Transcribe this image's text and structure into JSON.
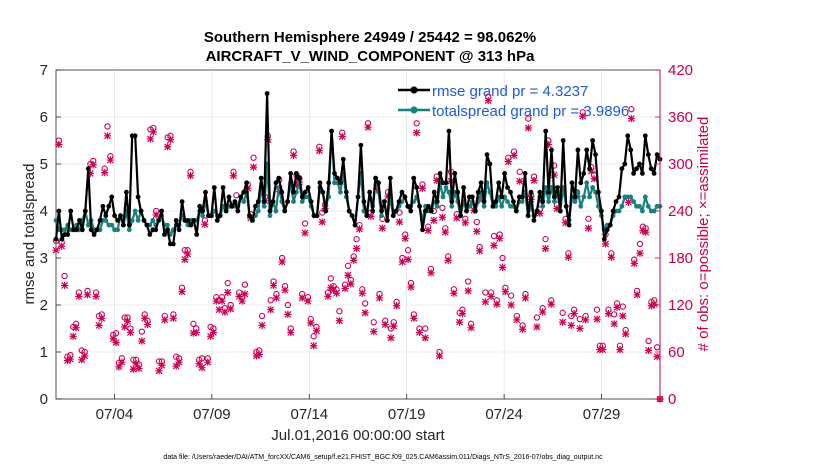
{
  "chart_data": {
    "type": "line",
    "title_line1": "Southern Hemisphere 24949 / 25442 = 98.062%",
    "title_line2": "AIRCRAFT_V_WIND_COMPONENT @ 313 hPa",
    "xlabel": "Jul.01,2016 00:00:00 start",
    "ylabel": "rmse and totalspread",
    "ylabel_right": "# of obs: o=possible; ×=assimilated",
    "footnote": "data file: /Users/raeder/DAI/ATM_forcXX/CAM6_setup/f.e21.FHIST_BGC.f09_025.CAM6assim.011/Diags_NTrS_2016-07/obs_diag_output.nc",
    "xlim": [
      1.0,
      32.0
    ],
    "ylim": [
      0,
      7
    ],
    "ylim_right": [
      0,
      420
    ],
    "x_ticks": [
      4,
      9,
      14,
      19,
      24,
      29
    ],
    "x_tick_labels": [
      "07/04",
      "07/09",
      "07/14",
      "07/19",
      "07/24",
      "07/29"
    ],
    "y_ticks": [
      0,
      1,
      2,
      3,
      4,
      5,
      6,
      7
    ],
    "y_tick_labels": [
      "0",
      "1",
      "2",
      "3",
      "4",
      "5",
      "6",
      "7"
    ],
    "y_right_ticks": [
      0,
      60,
      120,
      180,
      240,
      300,
      360,
      420
    ],
    "y_right_tick_labels": [
      "0",
      "60",
      "120",
      "180",
      "240",
      "300",
      "360",
      "420"
    ],
    "legend_location": "top-right",
    "colors": {
      "rmse": "#000000",
      "spread": "#1a7f7f",
      "obs": "#cc0055",
      "legend_text": "#1f5ad8"
    },
    "series": [
      {
        "name": "rmse grand pr = 4.3237",
        "axis": "left",
        "values": [
          3.4,
          4.0,
          3.4,
          3.5,
          3.5,
          4.0,
          3.6,
          3.6,
          3.8,
          3.6,
          4.0,
          4.9,
          3.6,
          3.5,
          3.6,
          3.8,
          4.1,
          3.9,
          4.1,
          4.3,
          3.9,
          3.8,
          3.9,
          3.7,
          4.4,
          3.7,
          5.6,
          5.6,
          4.3,
          4.0,
          3.8,
          3.7,
          3.5,
          3.6,
          3.6,
          3.8,
          4.0,
          3.5,
          3.6,
          3.3,
          3.3,
          3.8,
          3.6,
          4.2,
          3.8,
          3.8,
          3.7,
          3.8,
          3.5,
          4.1,
          4.0,
          4.4,
          3.9,
          3.9,
          4.5,
          3.8,
          3.9,
          4.5,
          4.0,
          4.3,
          4.1,
          4.2,
          4.0,
          4.3,
          4.4,
          4.6,
          3.9,
          3.8,
          4.1,
          4.2,
          4.7,
          4.2,
          6.5,
          4.0,
          4.2,
          4.6,
          4.7,
          4.4,
          4.0,
          4.2,
          4.8,
          4.4,
          4.8,
          4.7,
          4.3,
          4.4,
          4.5,
          4.2,
          3.9,
          3.9,
          4.6,
          4.4,
          4.0,
          4.6,
          5.7,
          4.8,
          4.7,
          4.6,
          5.1,
          4.4,
          4.0,
          3.9,
          3.7,
          4.3,
          5.4,
          4.2,
          3.9,
          4.4,
          4.0,
          4.7,
          4.6,
          4.0,
          4.2,
          3.8,
          4.7,
          3.9,
          4.0,
          4.2,
          4.4,
          4.3,
          4.1,
          4.0,
          4.7,
          4.5,
          4.1,
          3.6,
          4.0,
          4.1,
          4.0,
          4.4,
          4.2,
          4.8,
          4.6,
          4.6,
          5.7,
          4.2,
          4.8,
          4.4,
          3.9,
          4.5,
          4.0,
          4.3,
          4.3,
          4.0,
          4.4,
          4.6,
          4.2,
          5.2,
          5.0,
          4.1,
          4.2,
          4.6,
          4.3,
          4.8,
          4.5,
          4.4,
          4.2,
          4.0,
          4.3,
          4.3,
          4.8,
          3.9,
          4.4,
          3.8,
          4.0,
          4.4,
          4.2,
          5.7,
          4.4,
          5.3,
          4.3,
          4.5,
          4.0,
          5.5,
          4.1,
          3.7,
          4.6,
          4.3,
          5.3,
          4.6,
          4.8,
          5.3,
          4.9,
          5.5,
          5.2,
          4.4,
          4.0,
          3.4,
          3.6,
          3.7,
          4.0,
          4.2,
          4.3,
          4.9,
          5.0,
          5.6,
          5.3,
          4.8,
          4.9,
          5.0,
          4.8,
          5.6,
          5.2,
          4.9,
          4.8,
          5.2,
          5.1
        ]
      },
      {
        "name": "totalspread grand pr = 3.9896",
        "axis": "left",
        "values": [
          3.8,
          3.6,
          3.6,
          3.6,
          3.7,
          3.6,
          3.6,
          3.7,
          3.6,
          3.8,
          4.0,
          3.7,
          3.8,
          3.6,
          3.6,
          3.6,
          3.8,
          3.8,
          3.7,
          3.7,
          3.6,
          3.6,
          3.9,
          3.7,
          4.0,
          3.6,
          3.8,
          4.0,
          3.8,
          4.0,
          3.8,
          3.7,
          3.7,
          3.8,
          3.7,
          3.8,
          3.9,
          3.7,
          3.7,
          3.5,
          3.6,
          3.7,
          3.7,
          3.9,
          3.8,
          3.7,
          3.8,
          3.8,
          3.8,
          4.0,
          3.9,
          4.2,
          3.9,
          3.9,
          4.0,
          3.9,
          3.9,
          4.1,
          4.0,
          4.1,
          4.1,
          4.1,
          4.1,
          4.3,
          4.2,
          4.4,
          3.9,
          3.8,
          3.9,
          4.0,
          4.5,
          4.1,
          5.0,
          3.9,
          4.2,
          4.0,
          4.5,
          4.2,
          4.0,
          4.2,
          4.6,
          4.2,
          4.4,
          4.6,
          4.2,
          4.3,
          4.3,
          4.1,
          3.9,
          3.9,
          4.5,
          4.4,
          4.1,
          4.3,
          5.7,
          4.6,
          4.6,
          4.4,
          4.8,
          4.3,
          4.0,
          3.9,
          3.7,
          4.3,
          4.8,
          4.0,
          3.9,
          4.4,
          4.1,
          4.7,
          4.4,
          3.9,
          4.2,
          3.8,
          4.3,
          3.9,
          4.0,
          4.1,
          4.2,
          4.3,
          4.1,
          4.1,
          4.2,
          4.3,
          4.1,
          3.8,
          4.1,
          4.0,
          4.0,
          4.2,
          4.1,
          4.6,
          4.3,
          4.5,
          4.4,
          4.1,
          4.4,
          4.2,
          3.9,
          4.2,
          4.0,
          4.1,
          4.2,
          4.0,
          4.2,
          4.4,
          4.1,
          4.6,
          4.4,
          4.1,
          4.1,
          4.3,
          4.1,
          4.3,
          4.2,
          4.1,
          4.1,
          4.0,
          4.2,
          4.2,
          4.4,
          3.9,
          4.1,
          3.9,
          4.0,
          4.3,
          4.1,
          4.5,
          4.2,
          4.5,
          4.2,
          4.4,
          4.0,
          4.5,
          4.1,
          3.8,
          4.3,
          4.2,
          4.4,
          4.1,
          4.3,
          4.6,
          4.3,
          4.5,
          4.4,
          4.1,
          3.9,
          3.6,
          3.7,
          3.7,
          3.9,
          4.0,
          4.0,
          4.1,
          4.3,
          4.3,
          4.3,
          4.2,
          4.1,
          4.1,
          4.0,
          4.3,
          4.1,
          4.0,
          4.0,
          4.1,
          4.1
        ]
      }
    ],
    "obs_possible": [
      202,
      330,
      200,
      157,
      54,
      56,
      92,
      96,
      136,
      62,
      60,
      138,
      300,
      304,
      136,
      106,
      108,
      294,
      348,
      310,
      82,
      84,
      46,
      52,
      104,
      104,
      90,
      50,
      50,
      44,
      86,
      108,
      100,
      344,
      346,
      240,
      48,
      48,
      106,
      334,
      336,
      108,
      54,
      52,
      142,
      190,
      190,
      290,
      96,
      90,
      50,
      52,
      228,
      52,
      92,
      90,
      130,
      126,
      130,
      116,
      148,
      120,
      290,
      260,
      136,
      130,
      146,
      274,
      236,
      308,
      60,
      62,
      106,
      258,
      336,
      126,
      150,
      134,
      280,
      180,
      144,
      120,
      90,
      316,
      286,
      282,
      134,
      224,
      130,
      102,
      80,
      92,
      322,
      238,
      248,
      136,
      154,
      144,
      140,
      112,
      340,
      146,
      170,
      152,
      182,
      204,
      222,
      140,
      122,
      352,
      238,
      98,
      274,
      134,
      230,
      100,
      264,
      90,
      98,
      124,
      238,
      180,
      210,
      190,
      148,
      108,
      352,
      90,
      274,
      90,
      220,
      166,
      240,
      284,
      60,
      244,
      218,
      182,
      290,
      140,
      236,
      110,
      114,
      230,
      150,
      96,
      246,
      226,
      194,
      260,
      136,
      386,
      136,
      208,
      126,
      210,
      180,
      142,
      308,
      132,
      316,
      106,
      290,
      94,
      134,
      358,
      260,
      284,
      104,
      242,
      116,
      204,
      330,
      126,
      298,
      248,
      268,
      110,
      230,
      186,
      106,
      114,
      264,
      102,
      366,
      106,
      230,
      296,
      286,
      114,
      68,
      68,
      210,
      114,
      186,
      108,
      122,
      68,
      118,
      88,
      256,
      370,
      178,
      138,
      198,
      220,
      218,
      74,
      124,
      126,
      66,
      0
    ]
  }
}
